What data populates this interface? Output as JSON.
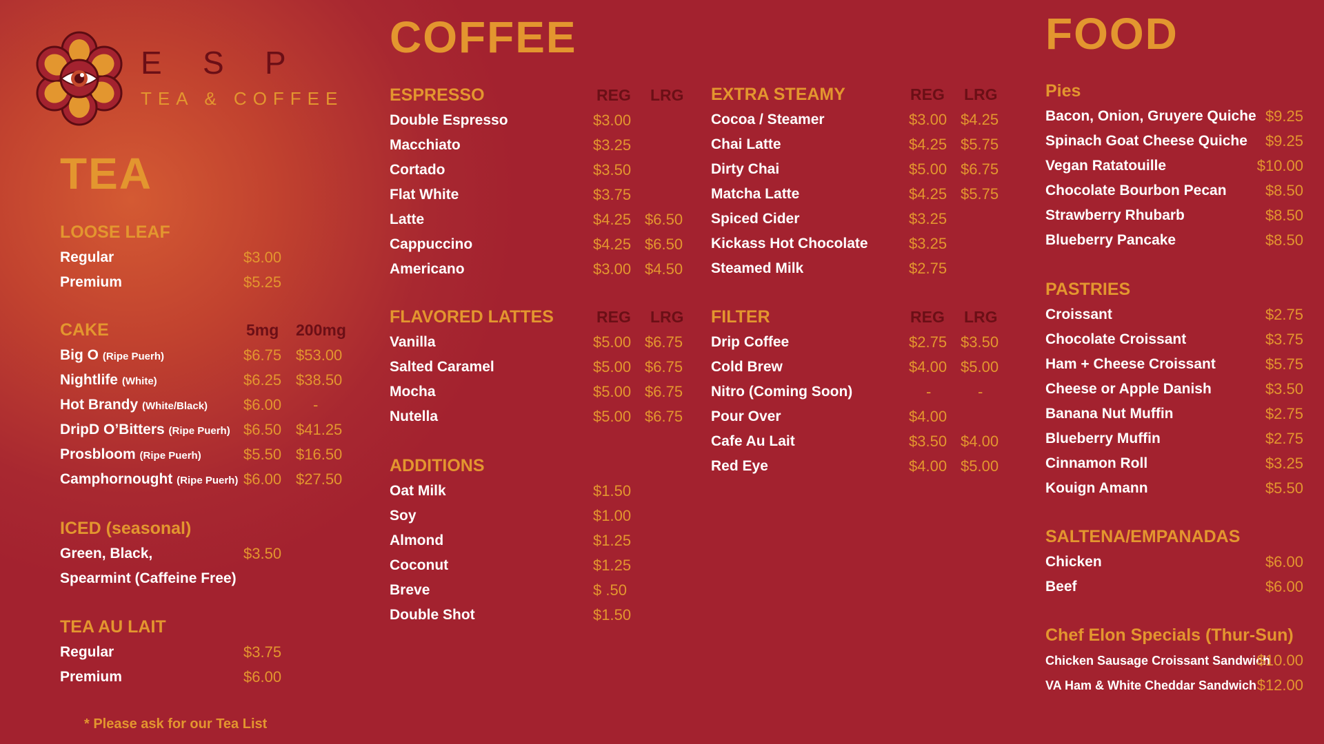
{
  "brand": {
    "letters": [
      "E",
      "S",
      "P"
    ],
    "tagline": "TEA & COFFEE"
  },
  "colors": {
    "background": "#a3222f",
    "accent": "#e3962f",
    "column_header": "#6b0f16",
    "item": "#ffffff"
  },
  "tea": {
    "title": "TEA",
    "footnote": "* Please ask for our Tea List",
    "sections": [
      {
        "heading": "LOOSE LEAF",
        "items": [
          {
            "name": "Regular",
            "p1": "$3.00"
          },
          {
            "name": "Premium",
            "p1": "$5.25"
          }
        ]
      },
      {
        "heading": "CAKE",
        "col1": "5mg",
        "col2": "200mg",
        "items": [
          {
            "name": "Big O",
            "note": "(Ripe Puerh)",
            "p1": "$6.75",
            "p2": "$53.00"
          },
          {
            "name": "Nightlife",
            "note": "(White)",
            "p1": "$6.25",
            "p2": "$38.50"
          },
          {
            "name": "Hot Brandy",
            "note": "(White/Black)",
            "p1": "$6.00",
            "p2": "-"
          },
          {
            "name": "DripD O’Bitters",
            "note": "(Ripe Puerh)",
            "p1": "$6.50",
            "p2": "$41.25"
          },
          {
            "name": "Prosbloom",
            "note": "(Ripe Puerh)",
            "p1": "$5.50",
            "p2": "$16.50"
          },
          {
            "name": "Camphornought",
            "note": "(Ripe Puerh)",
            "p1": "$6.00",
            "p2": "$27.50"
          }
        ]
      },
      {
        "heading": "ICED (seasonal)",
        "items": [
          {
            "name": "Green, Black,",
            "p1": "$3.50"
          },
          {
            "name": "Spearmint (Caffeine Free)"
          }
        ]
      },
      {
        "heading": "TEA AU LAIT",
        "items": [
          {
            "name": "Regular",
            "p1": "$3.75"
          },
          {
            "name": "Premium",
            "p1": "$6.00"
          }
        ]
      }
    ]
  },
  "coffee": {
    "title": "COFFEE",
    "sections": [
      {
        "heading": "ESPRESSO",
        "col1": "REG",
        "col2": "LRG",
        "items": [
          {
            "name": "Double Espresso",
            "p1": "$3.00"
          },
          {
            "name": "Macchiato",
            "p1": "$3.25"
          },
          {
            "name": "Cortado",
            "p1": "$3.50"
          },
          {
            "name": "Flat White",
            "p1": "$3.75"
          },
          {
            "name": "Latte",
            "p1": "$4.25",
            "p2": "$6.50"
          },
          {
            "name": "Cappuccino",
            "p1": "$4.25",
            "p2": "$6.50"
          },
          {
            "name": "Americano",
            "p1": "$3.00",
            "p2": "$4.50"
          }
        ]
      },
      {
        "heading": "FLAVORED LATTES",
        "col1": "REG",
        "col2": "LRG",
        "items": [
          {
            "name": "Vanilla",
            "p1": "$5.00",
            "p2": "$6.75"
          },
          {
            "name": "Salted Caramel",
            "p1": "$5.00",
            "p2": "$6.75"
          },
          {
            "name": "Mocha",
            "p1": "$5.00",
            "p2": "$6.75"
          },
          {
            "name": "Nutella",
            "p1": "$5.00",
            "p2": "$6.75"
          }
        ]
      },
      {
        "heading": "ADDITIONS",
        "items": [
          {
            "name": "Oat Milk",
            "p1": "$1.50"
          },
          {
            "name": "Soy",
            "p1": "$1.00"
          },
          {
            "name": "Almond",
            "p1": "$1.25"
          },
          {
            "name": "Coconut",
            "p1": "$1.25"
          },
          {
            "name": "Breve",
            "p1": "$  .50"
          },
          {
            "name": "Double Shot",
            "p1": "$1.50"
          }
        ]
      },
      {
        "heading": "EXTRA STEAMY",
        "col1": "REG",
        "col2": "LRG",
        "items": [
          {
            "name": "Cocoa / Steamer",
            "p1": "$3.00",
            "p2": "$4.25"
          },
          {
            "name": "Chai Latte",
            "p1": "$4.25",
            "p2": "$5.75"
          },
          {
            "name": "Dirty Chai",
            "p1": "$5.00",
            "p2": "$6.75"
          },
          {
            "name": "Matcha Latte",
            "p1": "$4.25",
            "p2": "$5.75"
          },
          {
            "name": "Spiced Cider",
            "p1": "$3.25"
          },
          {
            "name": "Kickass Hot Chocolate",
            "p1": "$3.25"
          },
          {
            "name": "Steamed Milk",
            "p1": "$2.75"
          }
        ]
      },
      {
        "heading": "FILTER",
        "col1": "REG",
        "col2": "LRG",
        "items": [
          {
            "name": "Drip Coffee",
            "p1": "$2.75",
            "p2": "$3.50"
          },
          {
            "name": "Cold Brew",
            "p1": "$4.00",
            "p2": "$5.00"
          },
          {
            "name": "Nitro (Coming Soon)",
            "p1": "-",
            "p2": "-"
          },
          {
            "name": "Pour Over",
            "p1": "$4.00"
          },
          {
            "name": "Cafe Au Lait",
            "p1": "$3.50",
            "p2": "$4.00"
          },
          {
            "name": "Red Eye",
            "p1": "$4.00",
            "p2": "$5.00"
          }
        ]
      }
    ]
  },
  "food": {
    "title": "FOOD",
    "sections": [
      {
        "heading": "Pies",
        "items": [
          {
            "name": "Bacon, Onion, Gruyere Quiche",
            "p1": "$9.25"
          },
          {
            "name": "Spinach Goat Cheese Quiche",
            "p1": "$9.25"
          },
          {
            "name": "Vegan Ratatouille",
            "p1": "$10.00"
          },
          {
            "name": "Chocolate Bourbon Pecan",
            "p1": "$8.50"
          },
          {
            "name": "Strawberry Rhubarb",
            "p1": "$8.50"
          },
          {
            "name": "Blueberry Pancake",
            "p1": "$8.50"
          }
        ]
      },
      {
        "heading": "PASTRIES",
        "items": [
          {
            "name": "Croissant",
            "p1": "$2.75"
          },
          {
            "name": "Chocolate Croissant",
            "p1": "$3.75"
          },
          {
            "name": "Ham + Cheese Croissant",
            "p1": "$5.75"
          },
          {
            "name": "Cheese or Apple Danish",
            "p1": "$3.50"
          },
          {
            "name": "Banana Nut Muffin",
            "p1": "$2.75"
          },
          {
            "name": "Blueberry Muffin",
            "p1": "$2.75"
          },
          {
            "name": "Cinnamon Roll",
            "p1": "$3.25"
          },
          {
            "name": "Kouign Amann",
            "p1": "$5.50"
          }
        ]
      },
      {
        "heading": "SALTENA/EMPANADAS",
        "items": [
          {
            "name": "Chicken",
            "p1": "$6.00"
          },
          {
            "name": "Beef",
            "p1": "$6.00"
          }
        ]
      },
      {
        "heading": "Chef Elon Specials (Thur-Sun)",
        "items": [
          {
            "name": "Chicken Sausage Croissant Sandwich",
            "p1": "$10.00"
          },
          {
            "name": "VA Ham & White Cheddar Sandwich",
            "p1": "$12.00"
          }
        ]
      }
    ]
  }
}
